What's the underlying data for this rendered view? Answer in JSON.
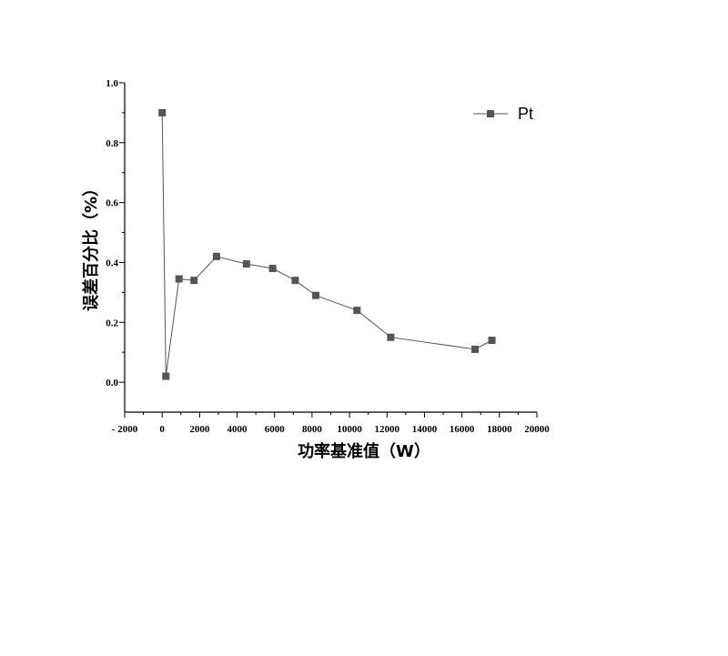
{
  "chart_data": {
    "type": "line",
    "xlabel": "功率基准值（W）",
    "ylabel": "误差百分比（%）",
    "xlim": [
      -2000,
      20000
    ],
    "ylim": [
      -0.1,
      1.0
    ],
    "x_ticks": [
      -2000,
      0,
      2000,
      4000,
      6000,
      8000,
      10000,
      12000,
      14000,
      16000,
      18000,
      20000
    ],
    "x_tick_labels": [
      "- 2000",
      "0",
      "2000",
      "4000",
      "6000",
      "8000",
      "10000",
      "12000",
      "14000",
      "16000",
      "18000",
      "20000"
    ],
    "y_ticks": [
      0.0,
      0.2,
      0.4,
      0.6,
      0.8,
      1.0
    ],
    "y_tick_labels": [
      "0.0",
      "0.2",
      "0.4",
      "0.6",
      "0.8",
      "1.0"
    ],
    "grid": false,
    "legend_position": "top-right",
    "series": [
      {
        "name": "Pt",
        "color": "#555555",
        "marker": "square",
        "x": [
          0,
          200,
          900,
          1700,
          2900,
          4500,
          5900,
          7100,
          8200,
          10400,
          12200,
          16700,
          17600
        ],
        "y": [
          0.9,
          0.02,
          0.345,
          0.34,
          0.42,
          0.395,
          0.38,
          0.34,
          0.29,
          0.24,
          0.15,
          0.11,
          0.14
        ]
      }
    ]
  }
}
